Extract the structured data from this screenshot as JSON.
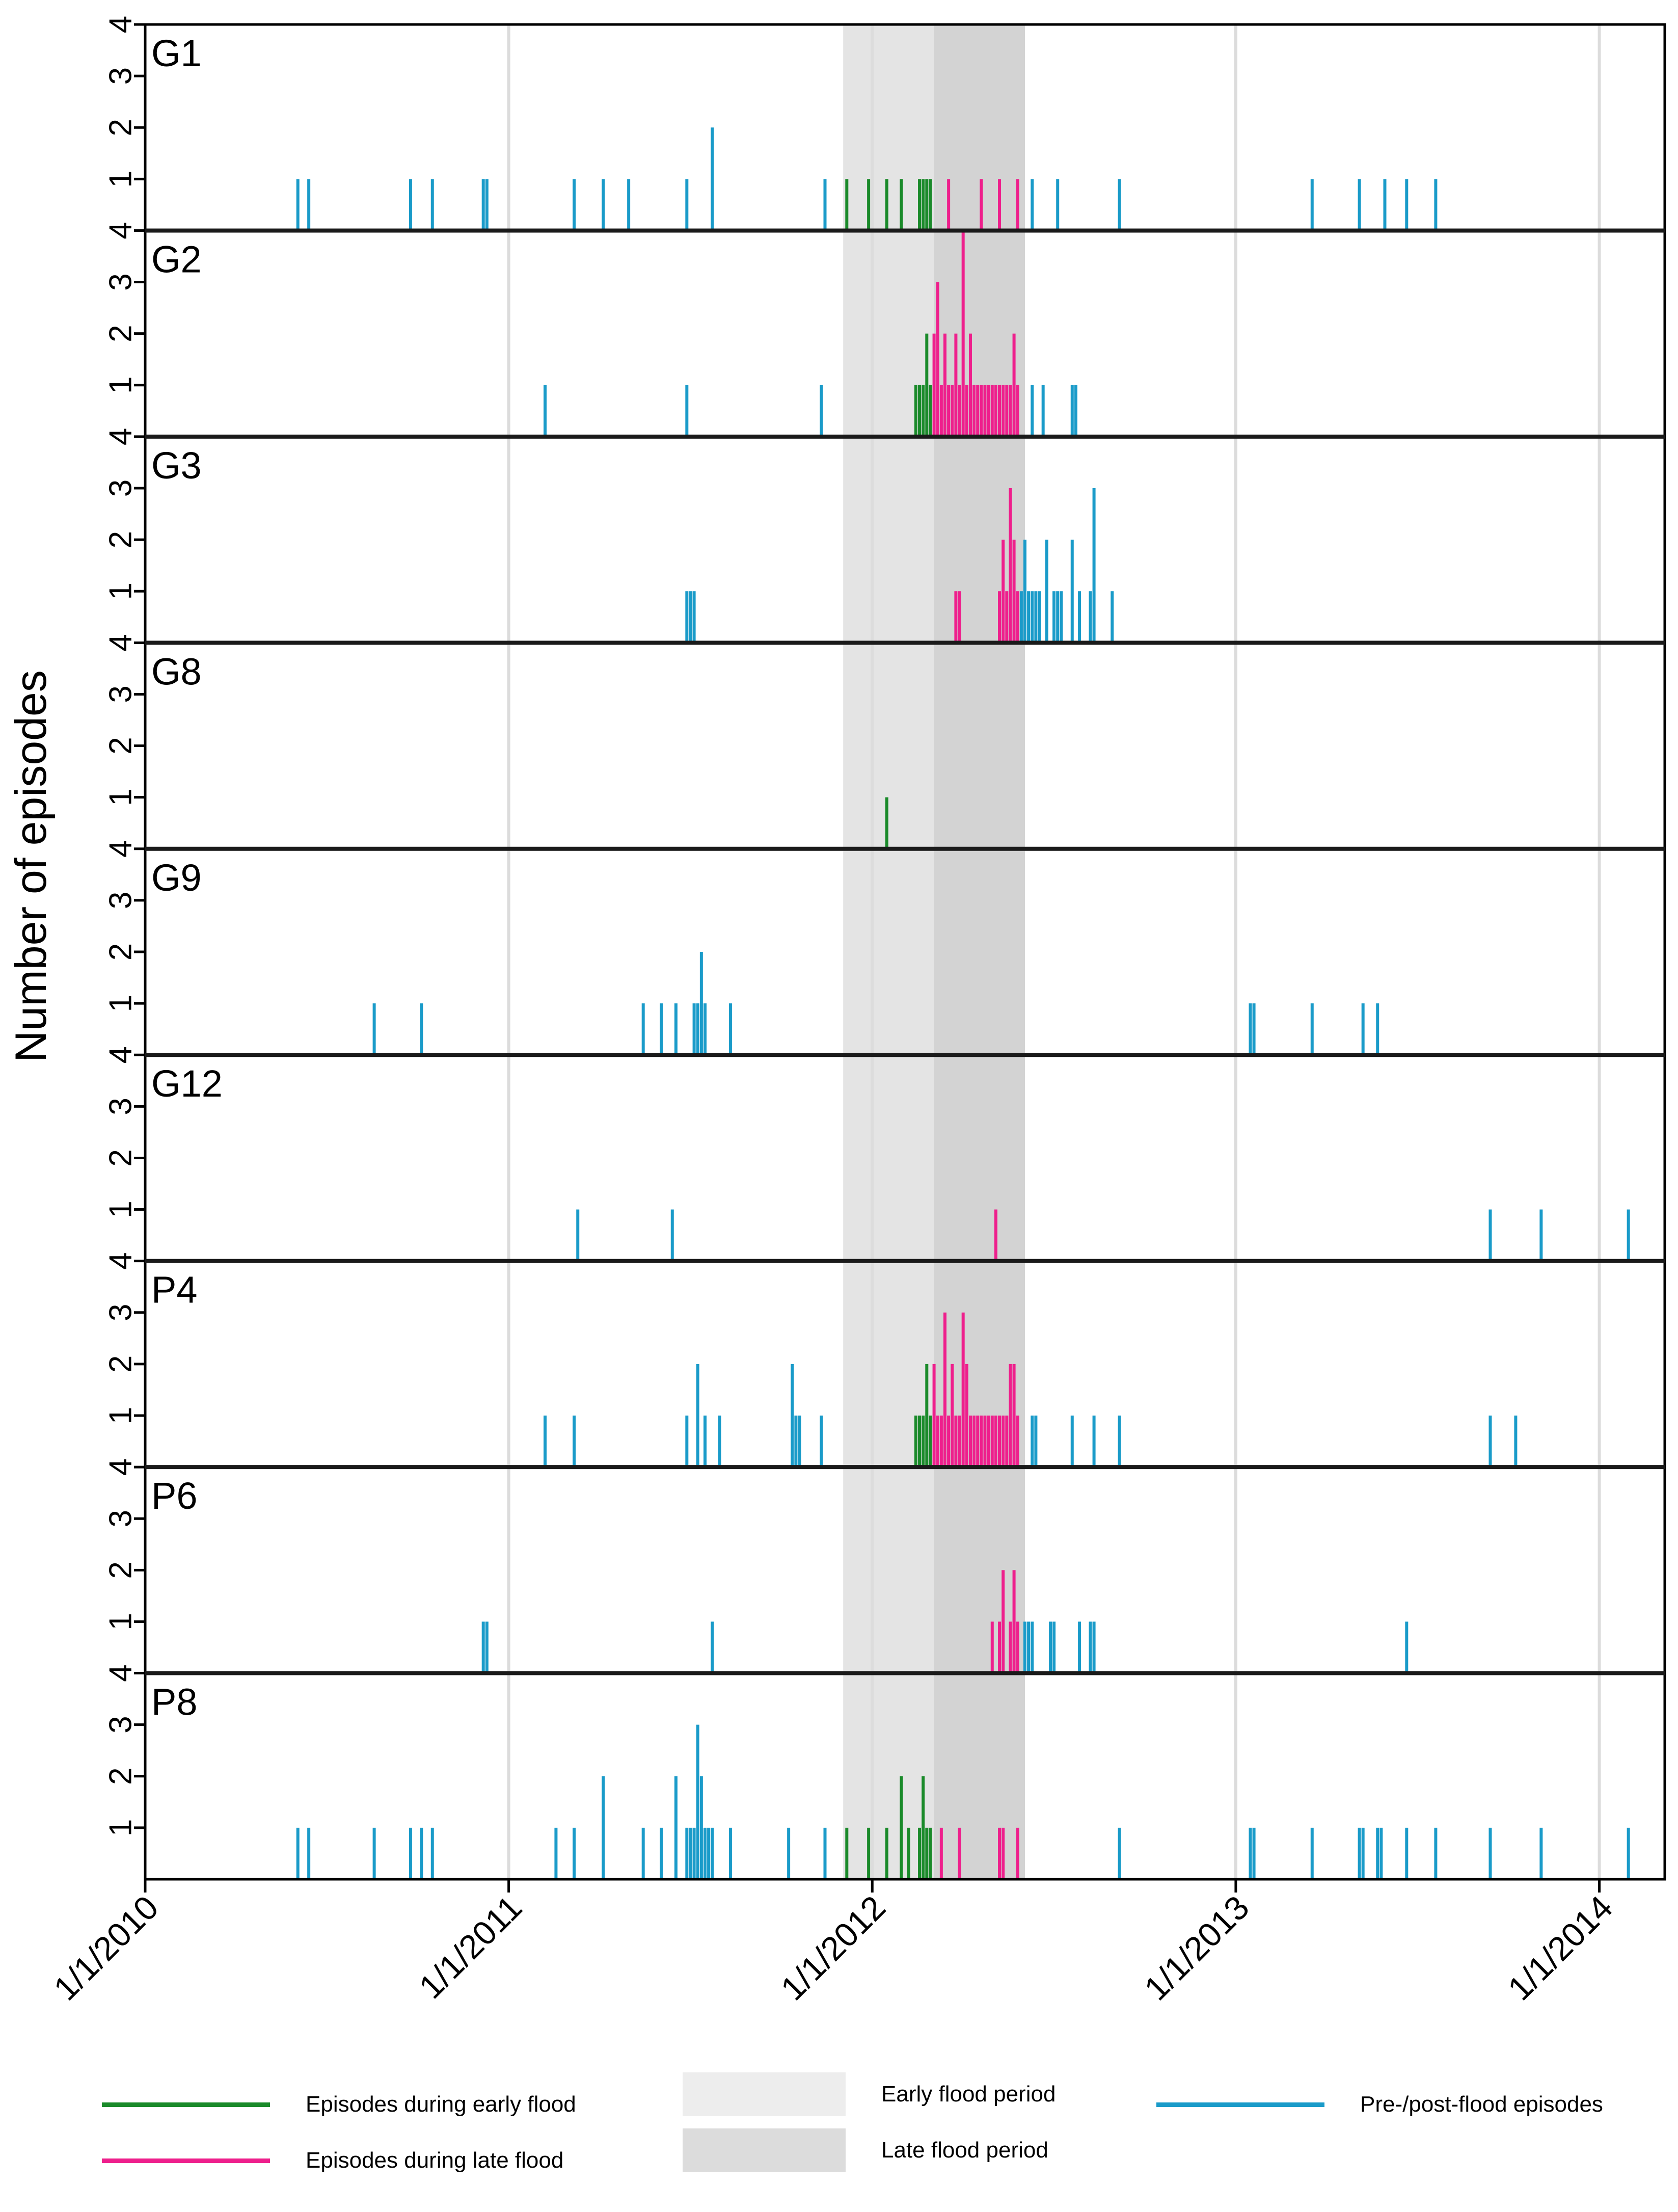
{
  "chart_data": {
    "type": "bar",
    "ylabel": "Number of episodes",
    "ylim": [
      0,
      4
    ],
    "y_ticks": [
      "1",
      "2",
      "3",
      "4"
    ],
    "x_ticks": [
      "1/1/2010",
      "1/1/2011",
      "1/1/2012",
      "1/1/2013",
      "1/1/2014"
    ],
    "periods": {
      "early": {
        "start": 2011.92,
        "end": 2012.17,
        "color": "#e4e4e4"
      },
      "late": {
        "start": 2012.17,
        "end": 2012.42,
        "color": "#d3d3d3"
      }
    },
    "colors": {
      "early": "#1a8a2a",
      "late": "#ee1f8c",
      "other": "#1a9bc9"
    },
    "panels": [
      {
        "name": "G1",
        "early": [
          [
            2011.93,
            1
          ],
          [
            2011.99,
            1
          ],
          [
            2012.04,
            1
          ],
          [
            2012.08,
            1
          ],
          [
            2012.13,
            1
          ],
          [
            2012.14,
            1
          ],
          [
            2012.15,
            1
          ],
          [
            2012.16,
            1
          ]
        ],
        "late": [
          [
            2012.21,
            1
          ],
          [
            2012.3,
            1
          ],
          [
            2012.35,
            1
          ],
          [
            2012.4,
            1
          ]
        ],
        "other": [
          [
            2010.42,
            1
          ],
          [
            2010.45,
            1
          ],
          [
            2010.73,
            1
          ],
          [
            2010.79,
            1
          ],
          [
            2010.93,
            1
          ],
          [
            2010.94,
            1
          ],
          [
            2011.18,
            1
          ],
          [
            2011.26,
            1
          ],
          [
            2011.33,
            1
          ],
          [
            2011.49,
            1
          ],
          [
            2011.56,
            2
          ],
          [
            2011.87,
            1
          ],
          [
            2012.44,
            1
          ],
          [
            2012.51,
            1
          ],
          [
            2012.68,
            1
          ],
          [
            2013.21,
            1
          ],
          [
            2013.34,
            1
          ],
          [
            2013.41,
            1
          ],
          [
            2013.47,
            1
          ],
          [
            2013.55,
            1
          ]
        ]
      },
      {
        "name": "G2",
        "early": [
          [
            2012.12,
            1
          ],
          [
            2012.13,
            1
          ],
          [
            2012.14,
            1
          ],
          [
            2012.15,
            2
          ],
          [
            2012.16,
            1
          ]
        ],
        "late": [
          [
            2012.17,
            2
          ],
          [
            2012.18,
            3
          ],
          [
            2012.19,
            1
          ],
          [
            2012.2,
            2
          ],
          [
            2012.21,
            1
          ],
          [
            2012.22,
            1
          ],
          [
            2012.23,
            2
          ],
          [
            2012.24,
            1
          ],
          [
            2012.25,
            4
          ],
          [
            2012.26,
            1
          ],
          [
            2012.27,
            2
          ],
          [
            2012.28,
            1
          ],
          [
            2012.29,
            1
          ],
          [
            2012.3,
            1
          ],
          [
            2012.31,
            1
          ],
          [
            2012.32,
            1
          ],
          [
            2012.33,
            1
          ],
          [
            2012.34,
            1
          ],
          [
            2012.35,
            1
          ],
          [
            2012.36,
            1
          ],
          [
            2012.37,
            1
          ],
          [
            2012.38,
            1
          ],
          [
            2012.39,
            2
          ],
          [
            2012.4,
            1
          ]
        ],
        "other": [
          [
            2011.1,
            1
          ],
          [
            2011.49,
            1
          ],
          [
            2011.86,
            1
          ],
          [
            2012.44,
            1
          ],
          [
            2012.47,
            1
          ],
          [
            2012.55,
            1
          ],
          [
            2012.56,
            1
          ]
        ]
      },
      {
        "name": "G3",
        "early": [],
        "late": [
          [
            2012.23,
            1
          ],
          [
            2012.24,
            1
          ],
          [
            2012.35,
            1
          ],
          [
            2012.36,
            2
          ],
          [
            2012.37,
            1
          ],
          [
            2012.38,
            3
          ],
          [
            2012.39,
            2
          ],
          [
            2012.4,
            1
          ]
        ],
        "other": [
          [
            2011.49,
            1
          ],
          [
            2011.5,
            1
          ],
          [
            2011.51,
            1
          ],
          [
            2012.41,
            1
          ],
          [
            2012.42,
            2
          ],
          [
            2012.43,
            1
          ],
          [
            2012.44,
            1
          ],
          [
            2012.45,
            1
          ],
          [
            2012.46,
            1
          ],
          [
            2012.48,
            2
          ],
          [
            2012.5,
            1
          ],
          [
            2012.51,
            1
          ],
          [
            2012.52,
            1
          ],
          [
            2012.55,
            2
          ],
          [
            2012.57,
            1
          ],
          [
            2012.6,
            1
          ],
          [
            2012.61,
            3
          ],
          [
            2012.66,
            1
          ]
        ]
      },
      {
        "name": "G8",
        "early": [
          [
            2012.04,
            1
          ]
        ],
        "late": [],
        "other": []
      },
      {
        "name": "G9",
        "early": [],
        "late": [],
        "other": [
          [
            2010.63,
            1
          ],
          [
            2010.76,
            1
          ],
          [
            2011.37,
            1
          ],
          [
            2011.42,
            1
          ],
          [
            2011.46,
            1
          ],
          [
            2011.51,
            1
          ],
          [
            2011.52,
            1
          ],
          [
            2011.53,
            2
          ],
          [
            2011.54,
            1
          ],
          [
            2011.61,
            1
          ],
          [
            2013.04,
            1
          ],
          [
            2013.05,
            1
          ],
          [
            2013.21,
            1
          ],
          [
            2013.35,
            1
          ],
          [
            2013.39,
            1
          ]
        ]
      },
      {
        "name": "G12",
        "early": [],
        "late": [
          [
            2012.34,
            1
          ]
        ],
        "other": [
          [
            2011.19,
            1
          ],
          [
            2011.45,
            1
          ],
          [
            2013.7,
            1
          ],
          [
            2013.84,
            1
          ],
          [
            2014.08,
            1
          ]
        ]
      },
      {
        "name": "P4",
        "early": [
          [
            2012.12,
            1
          ],
          [
            2012.13,
            1
          ],
          [
            2012.14,
            1
          ],
          [
            2012.15,
            2
          ],
          [
            2012.16,
            1
          ]
        ],
        "late": [
          [
            2012.17,
            2
          ],
          [
            2012.18,
            1
          ],
          [
            2012.19,
            1
          ],
          [
            2012.2,
            3
          ],
          [
            2012.21,
            1
          ],
          [
            2012.22,
            2
          ],
          [
            2012.23,
            1
          ],
          [
            2012.24,
            1
          ],
          [
            2012.25,
            3
          ],
          [
            2012.26,
            2
          ],
          [
            2012.27,
            1
          ],
          [
            2012.28,
            1
          ],
          [
            2012.29,
            1
          ],
          [
            2012.3,
            1
          ],
          [
            2012.31,
            1
          ],
          [
            2012.32,
            1
          ],
          [
            2012.33,
            1
          ],
          [
            2012.34,
            1
          ],
          [
            2012.35,
            1
          ],
          [
            2012.36,
            1
          ],
          [
            2012.37,
            1
          ],
          [
            2012.38,
            2
          ],
          [
            2012.39,
            2
          ],
          [
            2012.4,
            1
          ]
        ],
        "other": [
          [
            2011.1,
            1
          ],
          [
            2011.18,
            1
          ],
          [
            2011.49,
            1
          ],
          [
            2011.52,
            2
          ],
          [
            2011.54,
            1
          ],
          [
            2011.58,
            1
          ],
          [
            2011.78,
            2
          ],
          [
            2011.79,
            1
          ],
          [
            2011.8,
            1
          ],
          [
            2011.86,
            1
          ],
          [
            2012.44,
            1
          ],
          [
            2012.45,
            1
          ],
          [
            2012.55,
            1
          ],
          [
            2012.61,
            1
          ],
          [
            2012.68,
            1
          ],
          [
            2013.7,
            1
          ],
          [
            2013.77,
            1
          ]
        ]
      },
      {
        "name": "P6",
        "early": [],
        "late": [
          [
            2012.33,
            1
          ],
          [
            2012.35,
            1
          ],
          [
            2012.36,
            2
          ],
          [
            2012.38,
            1
          ],
          [
            2012.39,
            2
          ],
          [
            2012.4,
            1
          ]
        ],
        "other": [
          [
            2010.93,
            1
          ],
          [
            2010.94,
            1
          ],
          [
            2011.56,
            1
          ],
          [
            2012.42,
            1
          ],
          [
            2012.43,
            1
          ],
          [
            2012.44,
            1
          ],
          [
            2012.49,
            1
          ],
          [
            2012.5,
            1
          ],
          [
            2012.57,
            1
          ],
          [
            2012.6,
            1
          ],
          [
            2012.61,
            1
          ],
          [
            2013.47,
            1
          ]
        ]
      },
      {
        "name": "P8",
        "early": [
          [
            2011.93,
            1
          ],
          [
            2011.99,
            1
          ],
          [
            2012.04,
            1
          ],
          [
            2012.08,
            2
          ],
          [
            2012.1,
            1
          ],
          [
            2012.13,
            1
          ],
          [
            2012.14,
            2
          ],
          [
            2012.15,
            1
          ],
          [
            2012.16,
            1
          ]
        ],
        "late": [
          [
            2012.19,
            1
          ],
          [
            2012.24,
            1
          ],
          [
            2012.35,
            1
          ],
          [
            2012.36,
            1
          ],
          [
            2012.4,
            1
          ]
        ],
        "other": [
          [
            2010.42,
            1
          ],
          [
            2010.45,
            1
          ],
          [
            2010.63,
            1
          ],
          [
            2010.73,
            1
          ],
          [
            2010.76,
            1
          ],
          [
            2010.79,
            1
          ],
          [
            2011.13,
            1
          ],
          [
            2011.18,
            1
          ],
          [
            2011.26,
            2
          ],
          [
            2011.37,
            1
          ],
          [
            2011.42,
            1
          ],
          [
            2011.46,
            2
          ],
          [
            2011.49,
            1
          ],
          [
            2011.5,
            1
          ],
          [
            2011.51,
            1
          ],
          [
            2011.52,
            3
          ],
          [
            2011.53,
            2
          ],
          [
            2011.54,
            1
          ],
          [
            2011.55,
            1
          ],
          [
            2011.56,
            1
          ],
          [
            2011.61,
            1
          ],
          [
            2011.77,
            1
          ],
          [
            2011.87,
            1
          ],
          [
            2012.68,
            1
          ],
          [
            2013.04,
            1
          ],
          [
            2013.05,
            1
          ],
          [
            2013.21,
            1
          ],
          [
            2013.34,
            1
          ],
          [
            2013.35,
            1
          ],
          [
            2013.39,
            1
          ],
          [
            2013.4,
            1
          ],
          [
            2013.47,
            1
          ],
          [
            2013.55,
            1
          ],
          [
            2013.7,
            1
          ],
          [
            2013.84,
            1
          ],
          [
            2014.08,
            1
          ]
        ]
      }
    ]
  },
  "legend": {
    "early_episodes": {
      "label": "Episodes during early flood",
      "color": "#1a8a2a"
    },
    "late_episodes": {
      "label": "Episodes during late flood",
      "color": "#ee1f8c"
    },
    "early_period": {
      "label": "Early flood period",
      "color": "#ededed"
    },
    "late_period": {
      "label": "Late flood period",
      "color": "#dcdcdc"
    },
    "pre_post": {
      "label": "Pre-/post-flood episodes",
      "color": "#1a9bc9"
    }
  }
}
